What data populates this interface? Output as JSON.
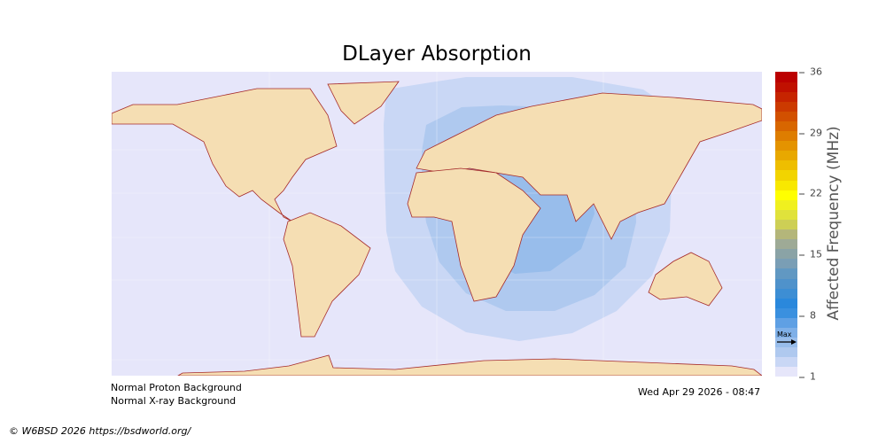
{
  "title": "DLayer Absorption",
  "colorbar": {
    "label": "Affected Frequency (MHz)",
    "ticks": [
      "36",
      "29",
      "22",
      "15",
      "8",
      "1"
    ],
    "range": [
      1,
      36
    ],
    "max_marker_label": "Max",
    "max_marker_value": 5,
    "colors": [
      "#e6e6fa",
      "#c9d7f5",
      "#afc9ef",
      "#98bdeb",
      "#7fb0e8",
      "#5fa0e4",
      "#3a90df",
      "#2a88dc",
      "#3d8ed4",
      "#4f92cb",
      "#6198c2",
      "#7a9eb5",
      "#8aa3a6",
      "#9eaa96",
      "#b4b67a",
      "#cdcf55",
      "#e0e23b",
      "#f0f01f",
      "#ffff00",
      "#f8e800",
      "#f2d400",
      "#eebe00",
      "#e8a800",
      "#e49300",
      "#de7d00",
      "#d86600",
      "#d25000",
      "#cc3a00",
      "#c62400",
      "#c01000",
      "#bb0000"
    ]
  },
  "map": {
    "ocean_color": "#e6e6fa",
    "land_color": "#f5deb3",
    "coast_color": "#a52a2a",
    "absorption_levels_mhz": [
      2,
      3,
      4
    ]
  },
  "footer": {
    "proton_status": "Normal Proton Background",
    "xray_status": "Normal X-ray Background",
    "timestamp": "Wed Apr 29 2026 - 08:47",
    "copyright": "© W6BSD 2026 https://bsdworld.org/"
  }
}
